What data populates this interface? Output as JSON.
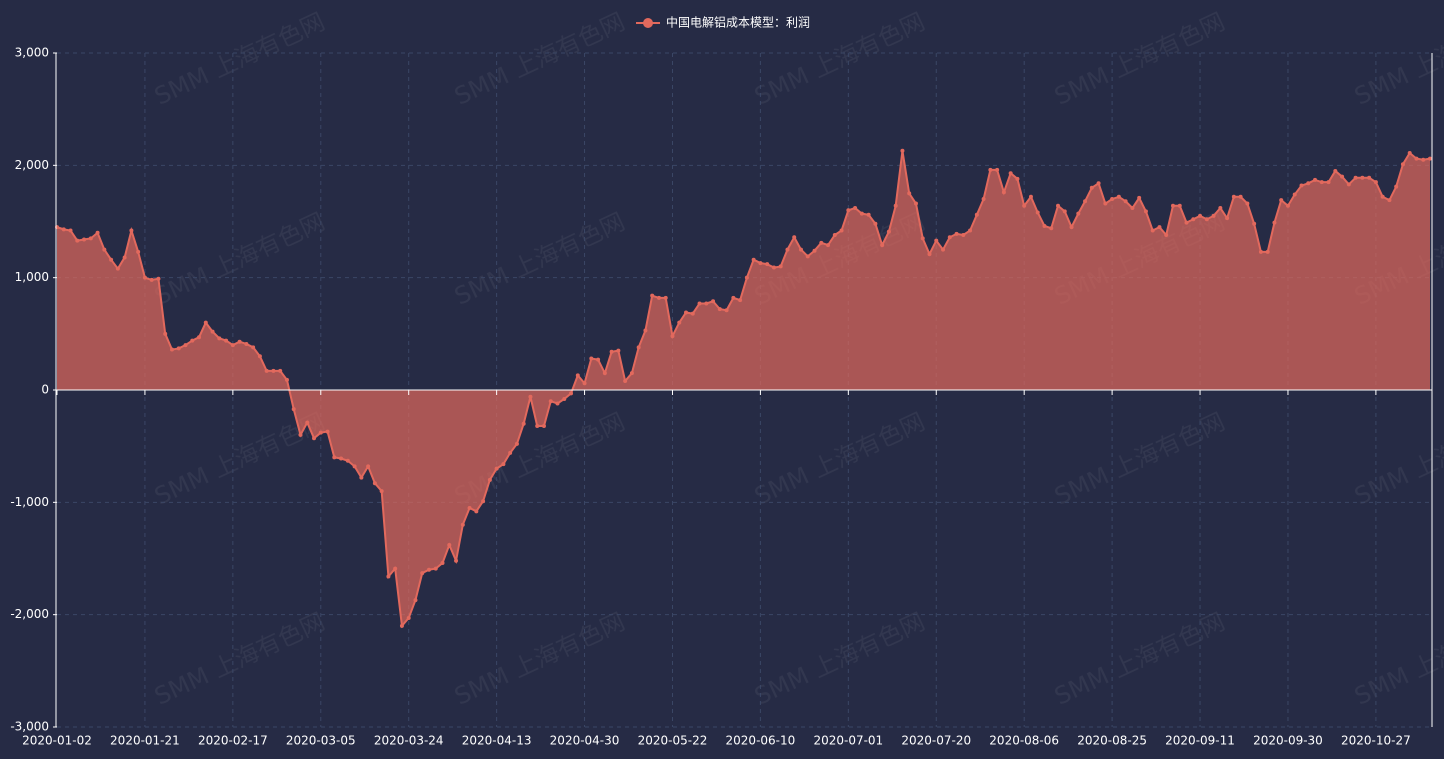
{
  "chart_data": {
    "type": "area",
    "watermark": "SMM 上海有色网",
    "categories": [
      "2020-01-02",
      null,
      null,
      null,
      null,
      null,
      null,
      null,
      null,
      null,
      null,
      null,
      null,
      "2020-01-21",
      null,
      null,
      null,
      null,
      null,
      null,
      null,
      null,
      null,
      null,
      null,
      null,
      "2020-02-17",
      null,
      null,
      null,
      null,
      null,
      null,
      null,
      null,
      null,
      null,
      null,
      null,
      "2020-03-05",
      null,
      null,
      null,
      null,
      null,
      null,
      null,
      null,
      null,
      null,
      null,
      null,
      "2020-03-24",
      null,
      null,
      null,
      null,
      null,
      null,
      null,
      null,
      null,
      null,
      null,
      null,
      "2020-04-13",
      null,
      null,
      null,
      null,
      null,
      null,
      null,
      null,
      null,
      null,
      null,
      null,
      "2020-04-30",
      null,
      null,
      null,
      null,
      null,
      null,
      null,
      null,
      null,
      null,
      null,
      null,
      "2020-05-22",
      null,
      null,
      null,
      null,
      null,
      null,
      null,
      null,
      null,
      null,
      null,
      null,
      "2020-06-10",
      null,
      null,
      null,
      null,
      null,
      null,
      null,
      null,
      null,
      null,
      null,
      null,
      "2020-07-01",
      null,
      null,
      null,
      null,
      null,
      null,
      null,
      null,
      null,
      null,
      null,
      null,
      "2020-07-20",
      null,
      null,
      null,
      null,
      null,
      null,
      null,
      null,
      null,
      null,
      null,
      null,
      "2020-08-06",
      null,
      null,
      null,
      null,
      null,
      null,
      null,
      null,
      null,
      null,
      null,
      null,
      "2020-08-25",
      null,
      null,
      null,
      null,
      null,
      null,
      null,
      null,
      null,
      null,
      null,
      null,
      "2020-09-11",
      null,
      null,
      null,
      null,
      null,
      null,
      null,
      null,
      null,
      null,
      null,
      null,
      "2020-09-30",
      null,
      null,
      null,
      null,
      null,
      null,
      null,
      null,
      null,
      null,
      null,
      null,
      "2020-10-27",
      null,
      null,
      null,
      null,
      null,
      null,
      null,
      null
    ],
    "series": [
      {
        "name": "中国电解铝成本模型：利润",
        "color": "#e2695d",
        "values": [
          1450,
          1430,
          1420,
          1330,
          1340,
          1350,
          1400,
          1250,
          1160,
          1080,
          1180,
          1420,
          1230,
          1000,
          980,
          990,
          500,
          360,
          370,
          400,
          440,
          470,
          600,
          520,
          460,
          440,
          400,
          430,
          410,
          380,
          300,
          170,
          170,
          170,
          90,
          -170,
          -400,
          -290,
          -430,
          -380,
          -370,
          -600,
          -610,
          -630,
          -680,
          -780,
          -680,
          -830,
          -900,
          -1660,
          -1590,
          -2100,
          -2030,
          -1870,
          -1630,
          -1600,
          -1590,
          -1540,
          -1380,
          -1520,
          -1200,
          -1050,
          -1080,
          -990,
          -800,
          -700,
          -660,
          -560,
          -480,
          -300,
          -60,
          -320,
          -320,
          -100,
          -120,
          -80,
          -30,
          130,
          60,
          280,
          270,
          150,
          340,
          350,
          80,
          150,
          380,
          530,
          840,
          820,
          820,
          480,
          600,
          690,
          680,
          770,
          770,
          790,
          720,
          710,
          820,
          800,
          1000,
          1160,
          1130,
          1120,
          1090,
          1100,
          1250,
          1360,
          1250,
          1190,
          1240,
          1310,
          1290,
          1380,
          1420,
          1600,
          1620,
          1570,
          1560,
          1480,
          1290,
          1410,
          1640,
          2130,
          1750,
          1660,
          1350,
          1210,
          1330,
          1250,
          1360,
          1390,
          1380,
          1420,
          1560,
          1700,
          1960,
          1960,
          1760,
          1930,
          1880,
          1640,
          1720,
          1580,
          1460,
          1440,
          1640,
          1590,
          1450,
          1570,
          1680,
          1800,
          1840,
          1660,
          1700,
          1720,
          1680,
          1620,
          1710,
          1590,
          1420,
          1450,
          1380,
          1640,
          1640,
          1490,
          1520,
          1550,
          1520,
          1550,
          1620,
          1530,
          1720,
          1720,
          1660,
          1480,
          1230,
          1230,
          1490,
          1690,
          1640,
          1740,
          1820,
          1840,
          1870,
          1850,
          1850,
          1950,
          1900,
          1830,
          1890,
          1890,
          1890,
          1850,
          1720,
          1690,
          1810,
          2010,
          2110,
          2060,
          2050,
          2060
        ]
      }
    ],
    "ylim": [
      -3000,
      3000
    ],
    "yticks": [
      {
        "value": -3000,
        "label": "-3,000"
      },
      {
        "value": -2000,
        "label": "-2,000"
      },
      {
        "value": -1000,
        "label": "-1,000"
      },
      0,
      {
        "value": 1000,
        "label": "1,000"
      },
      {
        "value": 2000,
        "label": "2,000"
      },
      {
        "value": 3000,
        "label": "3,000"
      }
    ],
    "grid": true,
    "legend": "top"
  }
}
